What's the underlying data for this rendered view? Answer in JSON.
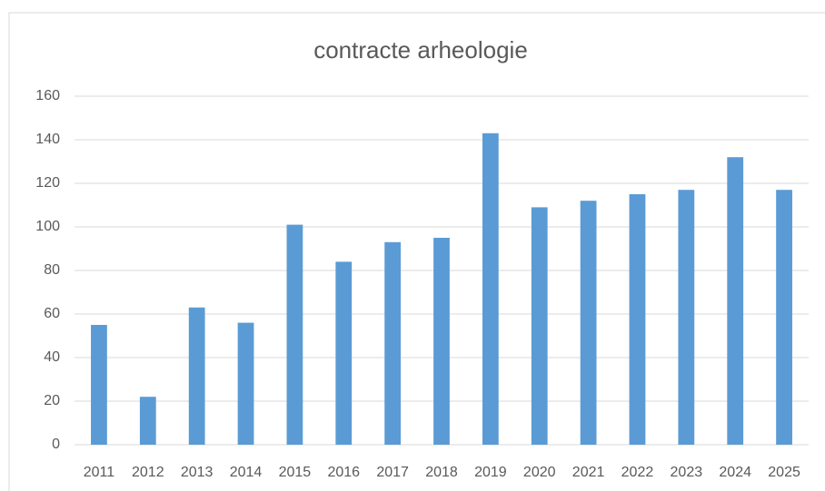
{
  "chart_data": {
    "type": "bar",
    "title": "contracte arheologie",
    "categories": [
      "2011",
      "2012",
      "2013",
      "2014",
      "2015",
      "2016",
      "2017",
      "2018",
      "2019",
      "2020",
      "2021",
      "2022",
      "2023",
      "2024",
      "2025"
    ],
    "values": [
      55,
      22,
      63,
      56,
      101,
      84,
      93,
      95,
      143,
      109,
      112,
      115,
      117,
      132,
      117
    ],
    "color": "#5b9bd5",
    "ylim": [
      0,
      160
    ],
    "yticks": [
      0,
      20,
      40,
      60,
      80,
      100,
      120,
      140,
      160
    ],
    "grid": true
  }
}
